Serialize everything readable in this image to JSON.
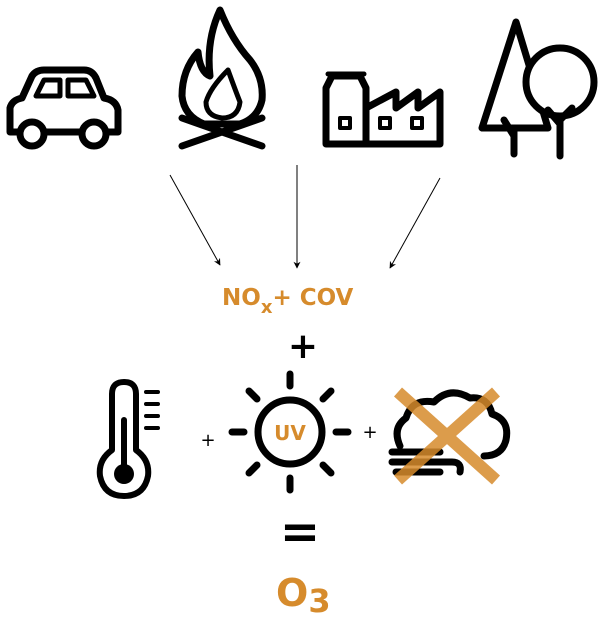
{
  "formula": {
    "main": "NO",
    "subscript": "x",
    "rest": "+ COV"
  },
  "plus_big": "+",
  "conditions": {
    "plus_left": "+",
    "sun_label": "UV",
    "plus_right": "+"
  },
  "equals": "=",
  "result": {
    "main": "O",
    "subscript": "3"
  }
}
